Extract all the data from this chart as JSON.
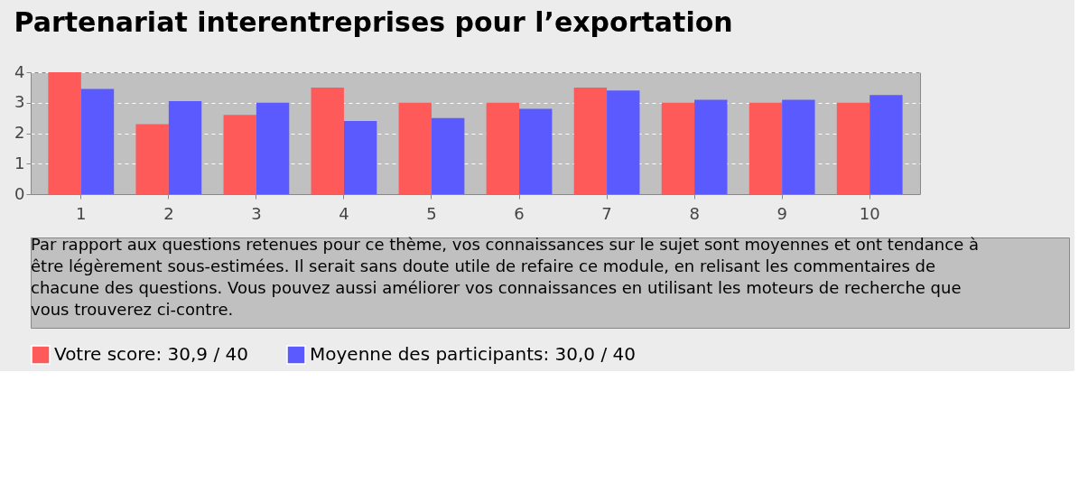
{
  "chart_data": {
    "type": "bar",
    "title": "Partenariat interentreprises pour l’exportation",
    "categories": [
      "1",
      "2",
      "3",
      "4",
      "5",
      "6",
      "7",
      "8",
      "9",
      "10"
    ],
    "series": [
      {
        "name": "Votre score: 30,9 / 40",
        "color": "#ff5a5a",
        "values": [
          4,
          2.3,
          2.6,
          3.5,
          3,
          3,
          3.5,
          3,
          3,
          3
        ]
      },
      {
        "name": "Moyenne des participants: 30,0 / 40",
        "color": "#5a5aff",
        "values": [
          3.45,
          3.05,
          3.0,
          2.4,
          2.5,
          2.8,
          3.4,
          3.1,
          3.1,
          3.25
        ]
      }
    ],
    "ylim": [
      0,
      4
    ],
    "yticks": [
      0,
      1,
      2,
      3,
      4
    ],
    "grid": "y",
    "legend": "bottom",
    "annotations": [
      "Par rapport aux questions retenues pour ce thème, vos connaissances sur le sujet sont moyennes et ont tendance à être légèrement sous-estimées. Il serait sans doute utile de refaire ce module, en relisant les commentaires de chacune des questions. Vous pouvez aussi améliorer vos connaissances en utilisant les moteurs de recherche que vous trouverez ci-contre."
    ]
  }
}
